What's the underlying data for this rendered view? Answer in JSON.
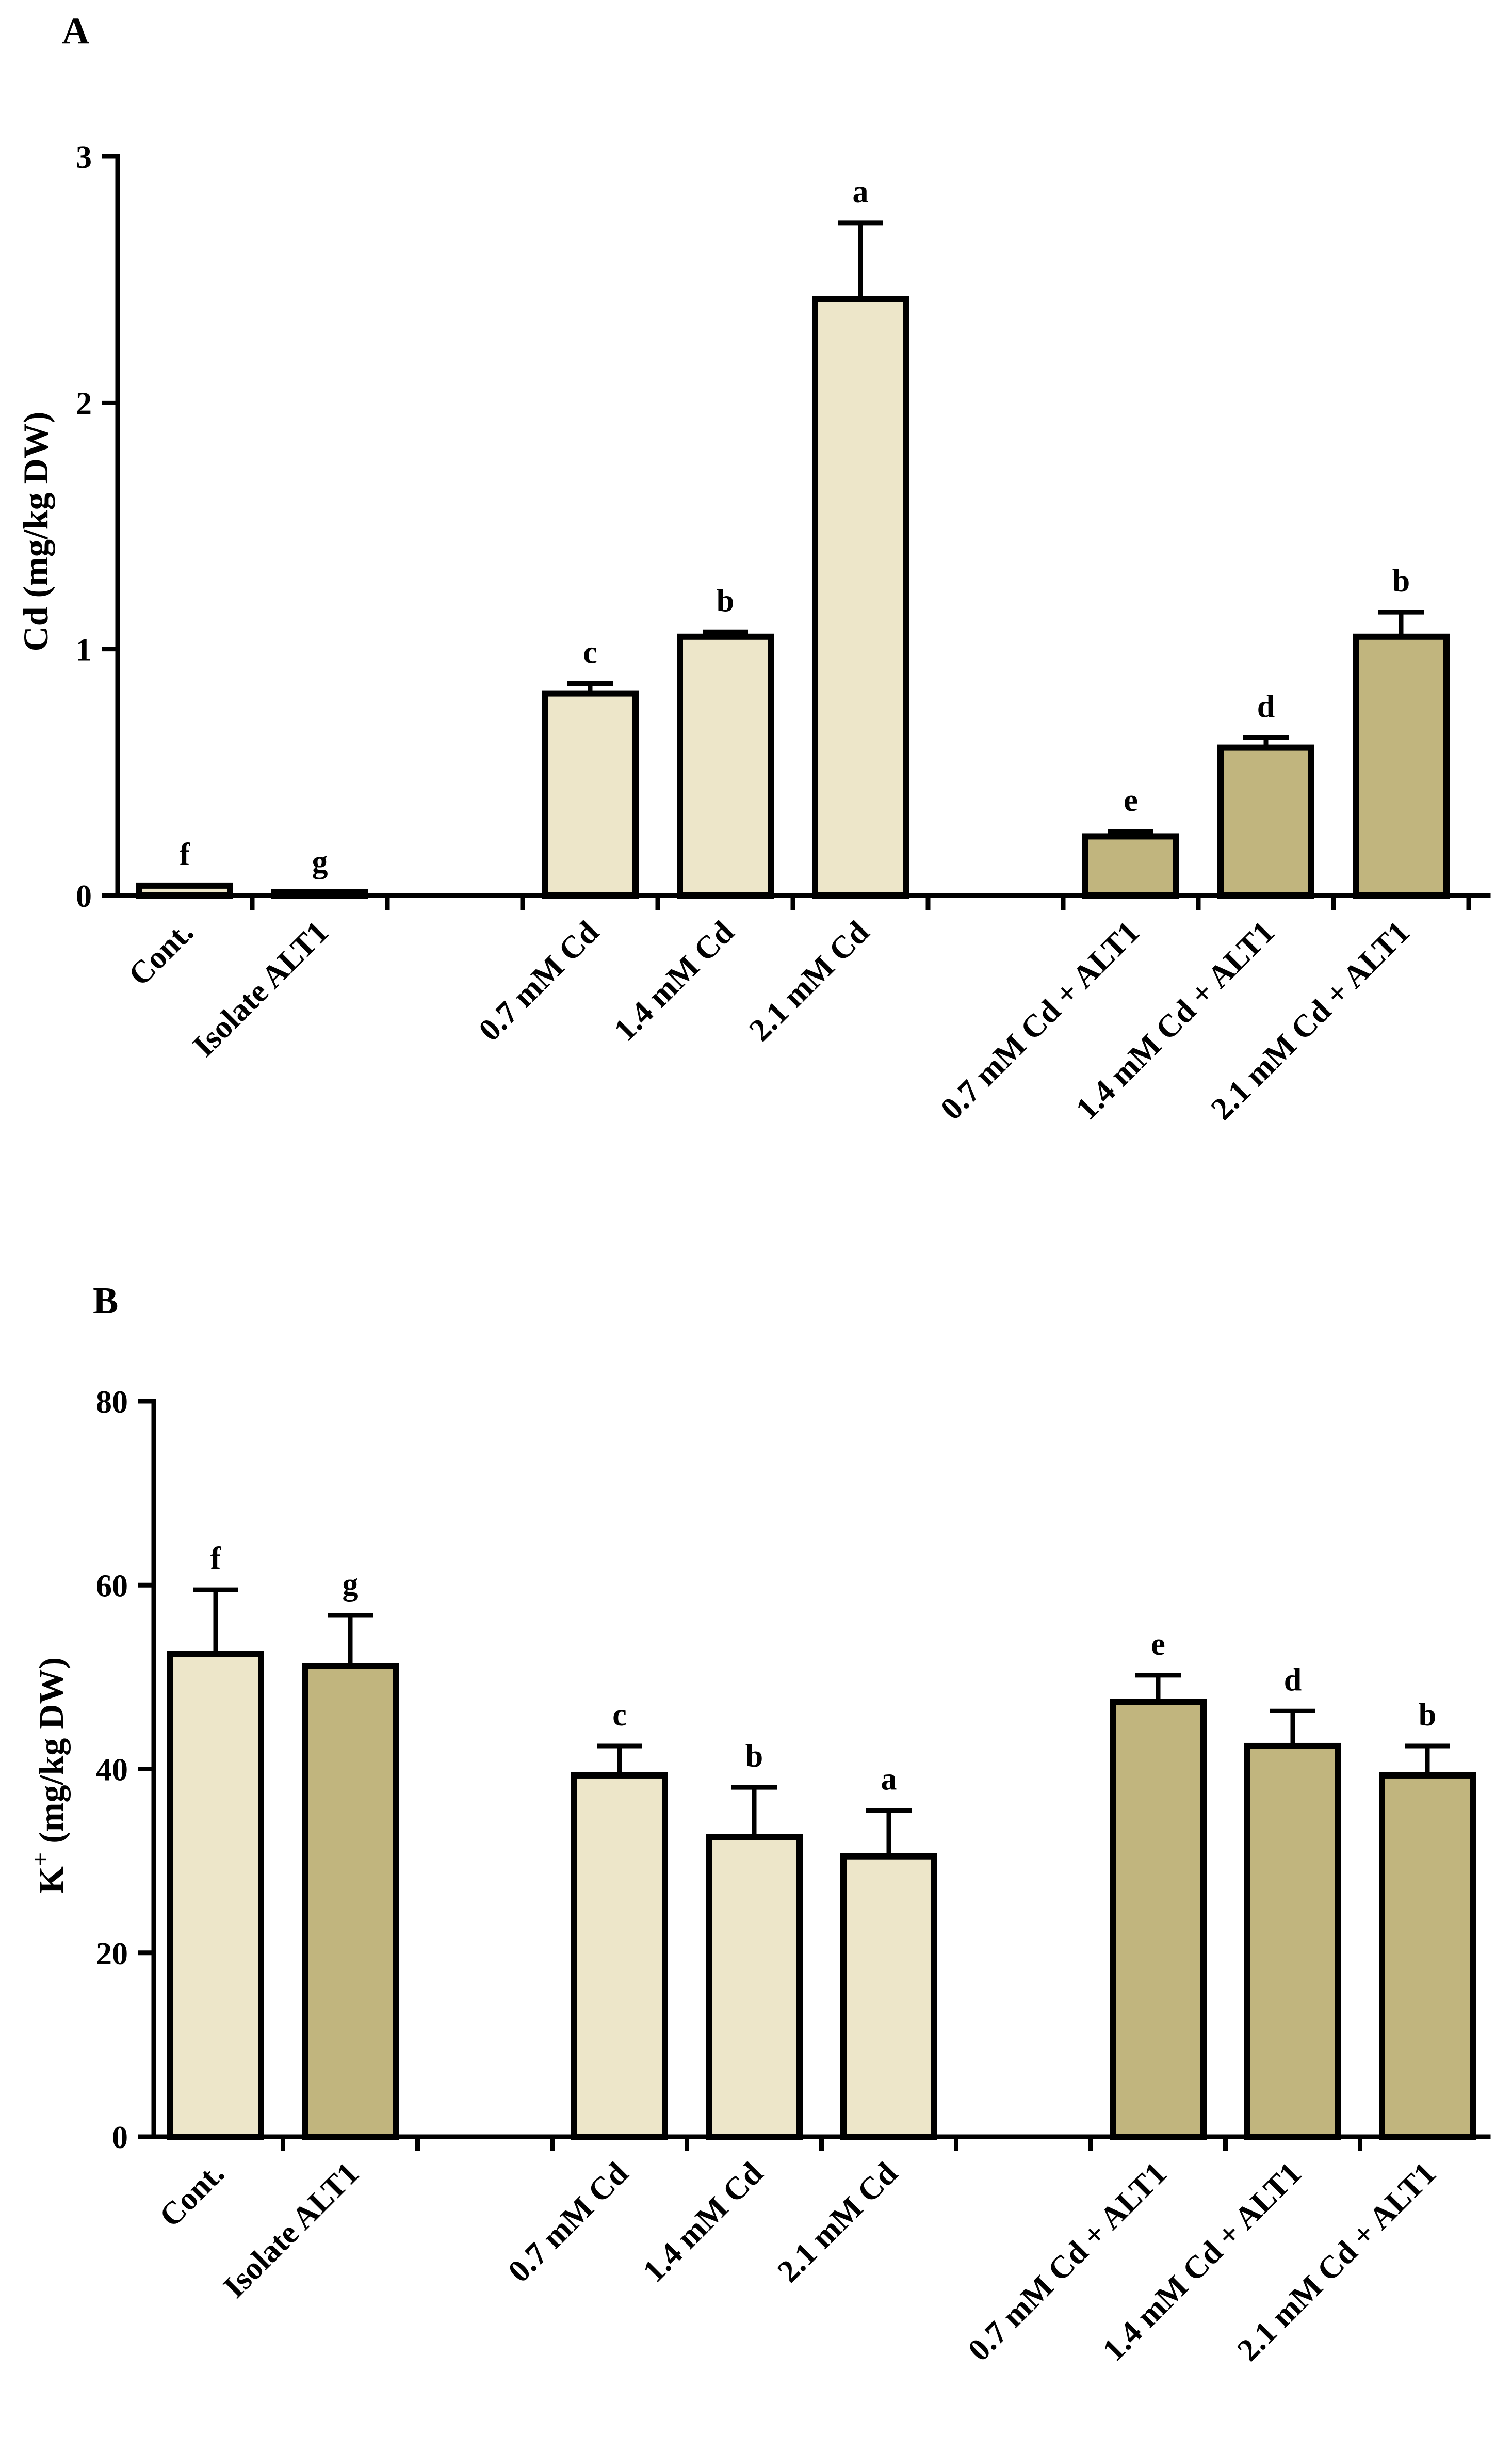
{
  "colors": {
    "light": "#EDE6C9",
    "dark": "#C1B57E"
  },
  "chart_data": [
    {
      "type": "bar",
      "panel_label": "A",
      "ylabel": "Cd (mg/kg DW)",
      "ylim": [
        0,
        3
      ],
      "yticks": [
        {
          "value": 0,
          "label": "0"
        },
        {
          "value": 1,
          "label": "1"
        },
        {
          "value": 2,
          "label": "2"
        },
        {
          "value": 3,
          "label": "3"
        }
      ],
      "bars": [
        {
          "category": "Cont.",
          "value": 0.04,
          "error": 0.0,
          "letter": "f",
          "fill": "light",
          "slot": 0
        },
        {
          "category": "Isolate ALT1",
          "value": 0.01,
          "error": 0.0,
          "letter": "g",
          "fill": "light",
          "slot": 1
        },
        {
          "category": "0.7 mM Cd",
          "value": 0.82,
          "error": 0.04,
          "letter": "c",
          "fill": "light",
          "slot": 3
        },
        {
          "category": "1.4 mM Cd",
          "value": 1.05,
          "error": 0.02,
          "letter": "b",
          "fill": "light",
          "slot": 4
        },
        {
          "category": "2.1 mM Cd",
          "value": 2.42,
          "error": 0.31,
          "letter": "a",
          "fill": "light",
          "slot": 5
        },
        {
          "category": "0.7 mM Cd + ALT1",
          "value": 0.24,
          "error": 0.02,
          "letter": "e",
          "fill": "dark",
          "slot": 7
        },
        {
          "category": "1.4 mM Cd + ALT1",
          "value": 0.6,
          "error": 0.04,
          "letter": "d",
          "fill": "dark",
          "slot": 8
        },
        {
          "category": "2.1 mM Cd + ALT1",
          "value": 1.05,
          "error": 0.1,
          "letter": "b",
          "fill": "dark",
          "slot": 9
        }
      ]
    },
    {
      "type": "bar",
      "panel_label": "B",
      "ylabel_main": "K",
      "ylabel_sup": "+",
      "ylabel_rest": " (mg/kg DW)",
      "ylim": [
        0,
        80
      ],
      "yticks": [
        {
          "value": 0,
          "label": "0"
        },
        {
          "value": 20,
          "label": "20"
        },
        {
          "value": 40,
          "label": "40"
        },
        {
          "value": 60,
          "label": "60"
        },
        {
          "value": 80,
          "label": "80"
        }
      ],
      "bars": [
        {
          "category": "Cont.",
          "value": 52.5,
          "error": 7.0,
          "letter": "f",
          "fill": "light",
          "slot": 0
        },
        {
          "category": "Isolate ALT1",
          "value": 51.2,
          "error": 5.5,
          "letter": "g",
          "fill": "dark",
          "slot": 1
        },
        {
          "category": "0.7 mM Cd",
          "value": 39.3,
          "error": 3.2,
          "letter": "c",
          "fill": "light",
          "slot": 3
        },
        {
          "category": "1.4 mM Cd",
          "value": 32.6,
          "error": 5.4,
          "letter": "b",
          "fill": "light",
          "slot": 4
        },
        {
          "category": "2.1 mM Cd",
          "value": 30.5,
          "error": 5.0,
          "letter": "a",
          "fill": "light",
          "slot": 5
        },
        {
          "category": "0.7 mM Cd + ALT1",
          "value": 47.3,
          "error": 2.9,
          "letter": "e",
          "fill": "dark",
          "slot": 7
        },
        {
          "category": "1.4 mM Cd + ALT1",
          "value": 42.5,
          "error": 3.8,
          "letter": "d",
          "fill": "dark",
          "slot": 8
        },
        {
          "category": "2.1 mM Cd + ALT1",
          "value": 39.3,
          "error": 3.2,
          "letter": "b",
          "fill": "dark",
          "slot": 9
        }
      ]
    }
  ]
}
